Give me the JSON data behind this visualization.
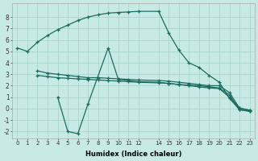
{
  "xlabel": "Humidex (Indice chaleur)",
  "bg_color": "#c8eae4",
  "grid_color": "#aad4cc",
  "line_color": "#1a6b5e",
  "xlim": [
    -0.5,
    23.5
  ],
  "ylim": [
    -2.6,
    9.2
  ],
  "xticks": [
    0,
    1,
    2,
    3,
    4,
    5,
    6,
    7,
    8,
    9,
    10,
    11,
    12,
    14,
    15,
    16,
    17,
    18,
    19,
    20,
    21,
    22,
    23
  ],
  "yticks": [
    -2,
    -1,
    0,
    1,
    2,
    3,
    4,
    5,
    6,
    7,
    8
  ],
  "line1_x": [
    0,
    1,
    2,
    3,
    4,
    5,
    6,
    7,
    8,
    9,
    10,
    11,
    12,
    14,
    15,
    16,
    17,
    18,
    19,
    20,
    21,
    22,
    23
  ],
  "line1_y": [
    5.3,
    5.0,
    5.8,
    6.4,
    6.9,
    7.3,
    7.7,
    8.0,
    8.2,
    8.35,
    8.4,
    8.45,
    8.5,
    8.5,
    6.6,
    5.1,
    4.0,
    3.6,
    2.9,
    2.3,
    0.9,
    -0.1,
    -0.2
  ],
  "line2_x": [
    2,
    3,
    4,
    5,
    6,
    7,
    8,
    9,
    10,
    11,
    12,
    14,
    15,
    16,
    17,
    18,
    19,
    20,
    21,
    22,
    23
  ],
  "line2_y": [
    3.3,
    3.1,
    3.0,
    2.9,
    2.8,
    2.7,
    2.7,
    2.65,
    2.6,
    2.55,
    2.5,
    2.45,
    2.4,
    2.3,
    2.2,
    2.1,
    2.0,
    2.0,
    1.4,
    0.05,
    -0.15
  ],
  "line3_x": [
    2,
    3,
    4,
    5,
    6,
    7,
    8,
    9,
    10,
    11,
    12,
    14,
    15,
    16,
    17,
    18,
    19,
    20,
    21,
    22,
    23
  ],
  "line3_y": [
    2.9,
    2.8,
    2.7,
    2.65,
    2.6,
    2.55,
    2.5,
    2.45,
    2.4,
    2.35,
    2.3,
    2.25,
    2.2,
    2.1,
    2.05,
    2.0,
    1.9,
    1.8,
    1.2,
    -0.1,
    -0.25
  ],
  "line4_x": [
    4,
    5,
    6,
    7,
    9,
    10,
    11,
    12,
    14,
    15,
    16,
    17,
    18,
    19,
    20,
    21,
    22,
    23
  ],
  "line4_y": [
    1.0,
    -2.0,
    -2.2,
    0.4,
    5.3,
    2.55,
    2.45,
    2.35,
    2.3,
    2.2,
    2.1,
    2.0,
    1.9,
    1.8,
    1.75,
    1.0,
    0.05,
    -0.15
  ]
}
